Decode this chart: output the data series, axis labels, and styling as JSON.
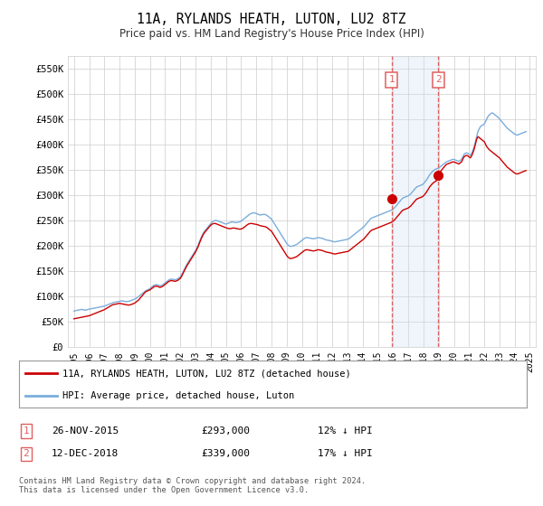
{
  "title": "11A, RYLANDS HEATH, LUTON, LU2 8TZ",
  "subtitle": "Price paid vs. HM Land Registry's House Price Index (HPI)",
  "ylim": [
    0,
    575000
  ],
  "yticks": [
    0,
    50000,
    100000,
    150000,
    200000,
    250000,
    300000,
    350000,
    400000,
    450000,
    500000,
    550000
  ],
  "ytick_labels": [
    "£0",
    "£50K",
    "£100K",
    "£150K",
    "£200K",
    "£250K",
    "£300K",
    "£350K",
    "£400K",
    "£450K",
    "£500K",
    "£550K"
  ],
  "hpi_color": "#7aaddc",
  "price_color": "#cc0000",
  "sale1_date": 2015.917,
  "sale1_price": 293000,
  "sale2_date": 2018.958,
  "sale2_price": 339000,
  "span_color": "#cce0f0",
  "dashed_color": "#e06060",
  "legend_label_price": "11A, RYLANDS HEATH, LUTON, LU2 8TZ (detached house)",
  "legend_label_hpi": "HPI: Average price, detached house, Luton",
  "table_row1": [
    "1",
    "26-NOV-2015",
    "£293,000",
    "12% ↓ HPI"
  ],
  "table_row2": [
    "2",
    "12-DEC-2018",
    "£339,000",
    "17% ↓ HPI"
  ],
  "footnote": "Contains HM Land Registry data © Crown copyright and database right 2024.\nThis data is licensed under the Open Government Licence v3.0.",
  "background_color": "#ffffff",
  "grid_color": "#cccccc",
  "xtick_years": [
    1995,
    1996,
    1997,
    1998,
    1999,
    2000,
    2001,
    2002,
    2003,
    2004,
    2005,
    2006,
    2007,
    2008,
    2009,
    2010,
    2011,
    2012,
    2013,
    2014,
    2015,
    2016,
    2017,
    2018,
    2019,
    2020,
    2021,
    2022,
    2023,
    2024,
    2025
  ],
  "hpi_years": [
    1995.0,
    1995.083,
    1995.167,
    1995.25,
    1995.333,
    1995.417,
    1995.5,
    1995.583,
    1995.667,
    1995.75,
    1995.833,
    1995.917,
    1996.0,
    1996.083,
    1996.167,
    1996.25,
    1996.333,
    1996.417,
    1996.5,
    1996.583,
    1996.667,
    1996.75,
    1996.833,
    1996.917,
    1997.0,
    1997.083,
    1997.167,
    1997.25,
    1997.333,
    1997.417,
    1997.5,
    1997.583,
    1997.667,
    1997.75,
    1997.833,
    1997.917,
    1998.0,
    1998.083,
    1998.167,
    1998.25,
    1998.333,
    1998.417,
    1998.5,
    1998.583,
    1998.667,
    1998.75,
    1998.833,
    1998.917,
    1999.0,
    1999.083,
    1999.167,
    1999.25,
    1999.333,
    1999.417,
    1999.5,
    1999.583,
    1999.667,
    1999.75,
    1999.833,
    1999.917,
    2000.0,
    2000.083,
    2000.167,
    2000.25,
    2000.333,
    2000.417,
    2000.5,
    2000.583,
    2000.667,
    2000.75,
    2000.833,
    2000.917,
    2001.0,
    2001.083,
    2001.167,
    2001.25,
    2001.333,
    2001.417,
    2001.5,
    2001.583,
    2001.667,
    2001.75,
    2001.833,
    2001.917,
    2002.0,
    2002.083,
    2002.167,
    2002.25,
    2002.333,
    2002.417,
    2002.5,
    2002.583,
    2002.667,
    2002.75,
    2002.833,
    2002.917,
    2003.0,
    2003.083,
    2003.167,
    2003.25,
    2003.333,
    2003.417,
    2003.5,
    2003.583,
    2003.667,
    2003.75,
    2003.833,
    2003.917,
    2004.0,
    2004.083,
    2004.167,
    2004.25,
    2004.333,
    2004.417,
    2004.5,
    2004.583,
    2004.667,
    2004.75,
    2004.833,
    2004.917,
    2005.0,
    2005.083,
    2005.167,
    2005.25,
    2005.333,
    2005.417,
    2005.5,
    2005.583,
    2005.667,
    2005.75,
    2005.833,
    2005.917,
    2006.0,
    2006.083,
    2006.167,
    2006.25,
    2006.333,
    2006.417,
    2006.5,
    2006.583,
    2006.667,
    2006.75,
    2006.833,
    2006.917,
    2007.0,
    2007.083,
    2007.167,
    2007.25,
    2007.333,
    2007.417,
    2007.5,
    2007.583,
    2007.667,
    2007.75,
    2007.833,
    2007.917,
    2008.0,
    2008.083,
    2008.167,
    2008.25,
    2008.333,
    2008.417,
    2008.5,
    2008.583,
    2008.667,
    2008.75,
    2008.833,
    2008.917,
    2009.0,
    2009.083,
    2009.167,
    2009.25,
    2009.333,
    2009.417,
    2009.5,
    2009.583,
    2009.667,
    2009.75,
    2009.833,
    2009.917,
    2010.0,
    2010.083,
    2010.167,
    2010.25,
    2010.333,
    2010.417,
    2010.5,
    2010.583,
    2010.667,
    2010.75,
    2010.833,
    2010.917,
    2011.0,
    2011.083,
    2011.167,
    2011.25,
    2011.333,
    2011.417,
    2011.5,
    2011.583,
    2011.667,
    2011.75,
    2011.833,
    2011.917,
    2012.0,
    2012.083,
    2012.167,
    2012.25,
    2012.333,
    2012.417,
    2012.5,
    2012.583,
    2012.667,
    2012.75,
    2012.833,
    2012.917,
    2013.0,
    2013.083,
    2013.167,
    2013.25,
    2013.333,
    2013.417,
    2013.5,
    2013.583,
    2013.667,
    2013.75,
    2013.833,
    2013.917,
    2014.0,
    2014.083,
    2014.167,
    2014.25,
    2014.333,
    2014.417,
    2014.5,
    2014.583,
    2014.667,
    2014.75,
    2014.833,
    2014.917,
    2015.0,
    2015.083,
    2015.167,
    2015.25,
    2015.333,
    2015.417,
    2015.5,
    2015.583,
    2015.667,
    2015.75,
    2015.833,
    2015.917,
    2016.0,
    2016.083,
    2016.167,
    2016.25,
    2016.333,
    2016.417,
    2016.5,
    2016.583,
    2016.667,
    2016.75,
    2016.833,
    2016.917,
    2017.0,
    2017.083,
    2017.167,
    2017.25,
    2017.333,
    2017.417,
    2017.5,
    2017.583,
    2017.667,
    2017.75,
    2017.833,
    2017.917,
    2018.0,
    2018.083,
    2018.167,
    2018.25,
    2018.333,
    2018.417,
    2018.5,
    2018.583,
    2018.667,
    2018.75,
    2018.833,
    2018.917,
    2019.0,
    2019.083,
    2019.167,
    2019.25,
    2019.333,
    2019.417,
    2019.5,
    2019.583,
    2019.667,
    2019.75,
    2019.833,
    2019.917,
    2020.0,
    2020.083,
    2020.167,
    2020.25,
    2020.333,
    2020.417,
    2020.5,
    2020.583,
    2020.667,
    2020.75,
    2020.833,
    2020.917,
    2021.0,
    2021.083,
    2021.167,
    2021.25,
    2021.333,
    2021.417,
    2021.5,
    2021.583,
    2021.667,
    2021.75,
    2021.833,
    2021.917,
    2022.0,
    2022.083,
    2022.167,
    2022.25,
    2022.333,
    2022.417,
    2022.5,
    2022.583,
    2022.667,
    2022.75,
    2022.833,
    2022.917,
    2023.0,
    2023.083,
    2023.167,
    2023.25,
    2023.333,
    2023.417,
    2023.5,
    2023.583,
    2023.667,
    2023.75,
    2023.833,
    2023.917,
    2024.0,
    2024.083,
    2024.167,
    2024.25,
    2024.333,
    2024.417,
    2024.5,
    2024.583,
    2024.667,
    2024.75
  ],
  "hpi_values": [
    70000,
    71000,
    71500,
    72000,
    72500,
    73000,
    73500,
    73000,
    72500,
    72000,
    72500,
    73500,
    74000,
    74500,
    75000,
    75500,
    76000,
    76500,
    77000,
    77500,
    78000,
    78500,
    79000,
    79500,
    80000,
    81000,
    82000,
    83000,
    84000,
    85000,
    86000,
    87000,
    87500,
    88000,
    88500,
    89000,
    89500,
    90000,
    90500,
    90000,
    89500,
    89000,
    89000,
    89500,
    90000,
    91000,
    92000,
    93000,
    94000,
    95000,
    97000,
    99000,
    101000,
    103000,
    105000,
    107000,
    109000,
    111000,
    112000,
    113000,
    115000,
    117000,
    119000,
    121000,
    122000,
    122500,
    122000,
    121000,
    120000,
    121000,
    122000,
    124000,
    126000,
    128000,
    130000,
    132000,
    133000,
    133500,
    133000,
    132500,
    132000,
    133000,
    134000,
    136000,
    138000,
    142000,
    147000,
    152000,
    157000,
    162000,
    166000,
    170000,
    174000,
    178000,
    182000,
    186000,
    190000,
    195000,
    200000,
    207000,
    213000,
    219000,
    224000,
    228000,
    231000,
    234000,
    237000,
    240000,
    243000,
    246000,
    248000,
    249000,
    249500,
    249000,
    248000,
    247000,
    246000,
    245000,
    244000,
    243000,
    242000,
    243000,
    244000,
    245000,
    246000,
    246500,
    246000,
    245500,
    245000,
    245500,
    246000,
    247000,
    248000,
    250000,
    252000,
    254000,
    256000,
    258000,
    260000,
    262000,
    263000,
    264000,
    264500,
    264000,
    263000,
    262000,
    261000,
    260000,
    260500,
    261000,
    261500,
    261000,
    260000,
    258000,
    256000,
    254000,
    252000,
    248000,
    244000,
    240000,
    236000,
    232000,
    228000,
    224000,
    220000,
    216000,
    212000,
    208000,
    204000,
    201000,
    199000,
    198000,
    198500,
    199000,
    200000,
    201000,
    202000,
    204000,
    206000,
    208000,
    210000,
    212000,
    214000,
    215000,
    215500,
    215000,
    214500,
    214000,
    213500,
    213000,
    213500,
    214000,
    215000,
    215500,
    215000,
    214500,
    214000,
    213000,
    212000,
    211000,
    210500,
    210000,
    209500,
    209000,
    208000,
    207500,
    207000,
    207500,
    208000,
    208500,
    209000,
    209500,
    210000,
    210500,
    211000,
    211500,
    212000,
    213000,
    215000,
    217000,
    219000,
    221000,
    223000,
    225000,
    227000,
    229000,
    231000,
    233000,
    235000,
    237000,
    240000,
    243000,
    246000,
    249000,
    252000,
    254000,
    255000,
    256000,
    257000,
    258000,
    259000,
    260000,
    261000,
    262000,
    263000,
    264000,
    265000,
    266000,
    267000,
    268000,
    269000,
    270000,
    272000,
    274000,
    277000,
    280000,
    283000,
    286000,
    289000,
    292000,
    294000,
    295000,
    296000,
    297000,
    298000,
    300000,
    302000,
    305000,
    308000,
    311000,
    314000,
    316000,
    317000,
    318000,
    319000,
    320000,
    322000,
    325000,
    328000,
    332000,
    336000,
    340000,
    343000,
    346000,
    348000,
    350000,
    351000,
    352000,
    353000,
    355000,
    357000,
    359000,
    361000,
    363000,
    365000,
    366000,
    367000,
    368000,
    369000,
    370000,
    370000,
    369000,
    368000,
    367000,
    366000,
    368000,
    370000,
    375000,
    380000,
    382000,
    383000,
    382000,
    380000,
    378000,
    382000,
    388000,
    395000,
    405000,
    415000,
    425000,
    430000,
    435000,
    437000,
    438000,
    440000,
    445000,
    450000,
    455000,
    458000,
    460000,
    462000,
    461000,
    459000,
    457000,
    455000,
    453000,
    450000,
    447000,
    444000,
    441000,
    438000,
    435000,
    432000,
    430000,
    428000,
    426000,
    424000,
    422000,
    420000,
    419000,
    418000,
    419000,
    420000,
    421000,
    422000,
    423000,
    424000,
    425000
  ],
  "price_years": [
    1995.0,
    1995.083,
    1995.167,
    1995.25,
    1995.333,
    1995.417,
    1995.5,
    1995.583,
    1995.667,
    1995.75,
    1995.833,
    1995.917,
    1996.0,
    1996.083,
    1996.167,
    1996.25,
    1996.333,
    1996.417,
    1996.5,
    1996.583,
    1996.667,
    1996.75,
    1996.833,
    1996.917,
    1997.0,
    1997.083,
    1997.167,
    1997.25,
    1997.333,
    1997.417,
    1997.5,
    1997.583,
    1997.667,
    1997.75,
    1997.833,
    1997.917,
    1998.0,
    1998.083,
    1998.167,
    1998.25,
    1998.333,
    1998.417,
    1998.5,
    1998.583,
    1998.667,
    1998.75,
    1998.833,
    1998.917,
    1999.0,
    1999.083,
    1999.167,
    1999.25,
    1999.333,
    1999.417,
    1999.5,
    1999.583,
    1999.667,
    1999.75,
    1999.833,
    1999.917,
    2000.0,
    2000.083,
    2000.167,
    2000.25,
    2000.333,
    2000.417,
    2000.5,
    2000.583,
    2000.667,
    2000.75,
    2000.833,
    2000.917,
    2001.0,
    2001.083,
    2001.167,
    2001.25,
    2001.333,
    2001.417,
    2001.5,
    2001.583,
    2001.667,
    2001.75,
    2001.833,
    2001.917,
    2002.0,
    2002.083,
    2002.167,
    2002.25,
    2002.333,
    2002.417,
    2002.5,
    2002.583,
    2002.667,
    2002.75,
    2002.833,
    2002.917,
    2003.0,
    2003.083,
    2003.167,
    2003.25,
    2003.333,
    2003.417,
    2003.5,
    2003.583,
    2003.667,
    2003.75,
    2003.833,
    2003.917,
    2004.0,
    2004.083,
    2004.167,
    2004.25,
    2004.333,
    2004.417,
    2004.5,
    2004.583,
    2004.667,
    2004.75,
    2004.833,
    2004.917,
    2005.0,
    2005.083,
    2005.167,
    2005.25,
    2005.333,
    2005.417,
    2005.5,
    2005.583,
    2005.667,
    2005.75,
    2005.833,
    2005.917,
    2006.0,
    2006.083,
    2006.167,
    2006.25,
    2006.333,
    2006.417,
    2006.5,
    2006.583,
    2006.667,
    2006.75,
    2006.833,
    2006.917,
    2007.0,
    2007.083,
    2007.167,
    2007.25,
    2007.333,
    2007.417,
    2007.5,
    2007.583,
    2007.667,
    2007.75,
    2007.833,
    2007.917,
    2008.0,
    2008.083,
    2008.167,
    2008.25,
    2008.333,
    2008.417,
    2008.5,
    2008.583,
    2008.667,
    2008.75,
    2008.833,
    2008.917,
    2009.0,
    2009.083,
    2009.167,
    2009.25,
    2009.333,
    2009.417,
    2009.5,
    2009.583,
    2009.667,
    2009.75,
    2009.833,
    2009.917,
    2010.0,
    2010.083,
    2010.167,
    2010.25,
    2010.333,
    2010.417,
    2010.5,
    2010.583,
    2010.667,
    2010.75,
    2010.833,
    2010.917,
    2011.0,
    2011.083,
    2011.167,
    2011.25,
    2011.333,
    2011.417,
    2011.5,
    2011.583,
    2011.667,
    2011.75,
    2011.833,
    2011.917,
    2012.0,
    2012.083,
    2012.167,
    2012.25,
    2012.333,
    2012.417,
    2012.5,
    2012.583,
    2012.667,
    2012.75,
    2012.833,
    2012.917,
    2013.0,
    2013.083,
    2013.167,
    2013.25,
    2013.333,
    2013.417,
    2013.5,
    2013.583,
    2013.667,
    2013.75,
    2013.833,
    2013.917,
    2014.0,
    2014.083,
    2014.167,
    2014.25,
    2014.333,
    2014.417,
    2014.5,
    2014.583,
    2014.667,
    2014.75,
    2014.833,
    2014.917,
    2015.0,
    2015.083,
    2015.167,
    2015.25,
    2015.333,
    2015.417,
    2015.5,
    2015.583,
    2015.667,
    2015.75,
    2015.833,
    2015.917,
    2016.0,
    2016.083,
    2016.167,
    2016.25,
    2016.333,
    2016.417,
    2016.5,
    2016.583,
    2016.667,
    2016.75,
    2016.833,
    2016.917,
    2017.0,
    2017.083,
    2017.167,
    2017.25,
    2017.333,
    2017.417,
    2017.5,
    2017.583,
    2017.667,
    2017.75,
    2017.833,
    2017.917,
    2018.0,
    2018.083,
    2018.167,
    2018.25,
    2018.333,
    2018.417,
    2018.5,
    2018.583,
    2018.667,
    2018.75,
    2018.833,
    2018.917,
    2019.0,
    2019.083,
    2019.167,
    2019.25,
    2019.333,
    2019.417,
    2019.5,
    2019.583,
    2019.667,
    2019.75,
    2019.833,
    2019.917,
    2020.0,
    2020.083,
    2020.167,
    2020.25,
    2020.333,
    2020.417,
    2020.5,
    2020.583,
    2020.667,
    2020.75,
    2020.833,
    2020.917,
    2021.0,
    2021.083,
    2021.167,
    2021.25,
    2021.333,
    2021.417,
    2021.5,
    2021.583,
    2021.667,
    2021.75,
    2021.833,
    2021.917,
    2022.0,
    2022.083,
    2022.167,
    2022.25,
    2022.333,
    2022.417,
    2022.5,
    2022.583,
    2022.667,
    2022.75,
    2022.833,
    2022.917,
    2023.0,
    2023.083,
    2023.167,
    2023.25,
    2023.333,
    2023.417,
    2023.5,
    2023.583,
    2023.667,
    2023.75,
    2023.833,
    2023.917,
    2024.0,
    2024.083,
    2024.167,
    2024.25,
    2024.333,
    2024.417,
    2024.5,
    2024.583,
    2024.667,
    2024.75
  ],
  "price_values": [
    55000,
    55500,
    56000,
    56500,
    57000,
    57500,
    58000,
    58500,
    59000,
    59500,
    60000,
    60500,
    61000,
    62000,
    63000,
    64000,
    65000,
    66000,
    67000,
    68000,
    69000,
    70000,
    71000,
    72000,
    73000,
    74500,
    76000,
    77500,
    79000,
    80500,
    82000,
    83000,
    83500,
    84000,
    84500,
    85000,
    85500,
    85000,
    84500,
    84000,
    83500,
    83000,
    82500,
    82000,
    82500,
    83000,
    84000,
    85000,
    86000,
    88000,
    90000,
    92000,
    95000,
    98000,
    101000,
    104000,
    107000,
    109000,
    110000,
    111000,
    112000,
    114000,
    116000,
    118000,
    119000,
    119500,
    119000,
    118000,
    117000,
    118000,
    119000,
    121000,
    123000,
    125000,
    127000,
    129000,
    130000,
    130500,
    130000,
    129500,
    129000,
    130000,
    131000,
    133000,
    135000,
    139000,
    144000,
    149000,
    154000,
    159000,
    163000,
    167000,
    171000,
    175000,
    179000,
    183000,
    187000,
    192000,
    197000,
    204000,
    210000,
    216000,
    221000,
    225000,
    228000,
    231000,
    234000,
    237000,
    240000,
    242000,
    243000,
    243500,
    243000,
    242000,
    241000,
    240000,
    239000,
    238000,
    237000,
    236000,
    235000,
    234000,
    233500,
    233000,
    233500,
    234000,
    234500,
    234000,
    233500,
    233000,
    232500,
    232000,
    232500,
    233500,
    235000,
    237000,
    239000,
    241000,
    242500,
    243000,
    243500,
    243000,
    242500,
    242000,
    241500,
    241000,
    240000,
    239000,
    238500,
    238000,
    237500,
    237000,
    236000,
    234000,
    232000,
    230000,
    228000,
    224000,
    220000,
    216000,
    212000,
    208000,
    204000,
    200000,
    196000,
    192000,
    188000,
    184000,
    180000,
    177000,
    175000,
    174000,
    174500,
    175000,
    176000,
    177000,
    178000,
    180000,
    182000,
    184000,
    186000,
    188000,
    190000,
    191000,
    191500,
    191000,
    190500,
    190000,
    189500,
    189000,
    189500,
    190000,
    191000,
    191500,
    191000,
    190500,
    190000,
    189000,
    188000,
    187000,
    186500,
    186000,
    185500,
    185000,
    184000,
    183500,
    183000,
    183500,
    184000,
    184500,
    185000,
    185500,
    186000,
    186500,
    187000,
    187500,
    188000,
    189000,
    191000,
    193000,
    195000,
    197000,
    199000,
    201000,
    203000,
    205000,
    207000,
    209000,
    211000,
    213000,
    216000,
    219000,
    222000,
    225000,
    228000,
    230000,
    231000,
    232000,
    233000,
    234000,
    235000,
    236000,
    237000,
    238000,
    239000,
    240000,
    241000,
    242000,
    243000,
    244000,
    245000,
    246000,
    248000,
    250000,
    253000,
    256000,
    259000,
    262000,
    265000,
    268000,
    270000,
    271000,
    272000,
    273000,
    274000,
    276000,
    278000,
    281000,
    284000,
    287000,
    290000,
    292000,
    293000,
    294000,
    295000,
    296000,
    298000,
    301000,
    304000,
    308000,
    312000,
    316000,
    319000,
    322000,
    324000,
    326000,
    327000,
    339000,
    342000,
    345000,
    348000,
    351000,
    354000,
    357000,
    360000,
    361000,
    362000,
    363000,
    364000,
    365000,
    365000,
    364000,
    363000,
    362000,
    361000,
    363000,
    365000,
    370000,
    375000,
    377000,
    378000,
    377000,
    375000,
    373000,
    377000,
    383000,
    390000,
    400000,
    410000,
    415000,
    413000,
    411000,
    409000,
    407000,
    405000,
    400000,
    395000,
    392000,
    389000,
    387000,
    385000,
    383000,
    381000,
    379000,
    377000,
    375000,
    373000,
    370000,
    367000,
    364000,
    361000,
    358000,
    355000,
    353000,
    351000,
    349000,
    347000,
    345000,
    343000,
    342000,
    341000,
    342000,
    343000,
    344000,
    345000,
    346000,
    347000,
    348000
  ]
}
